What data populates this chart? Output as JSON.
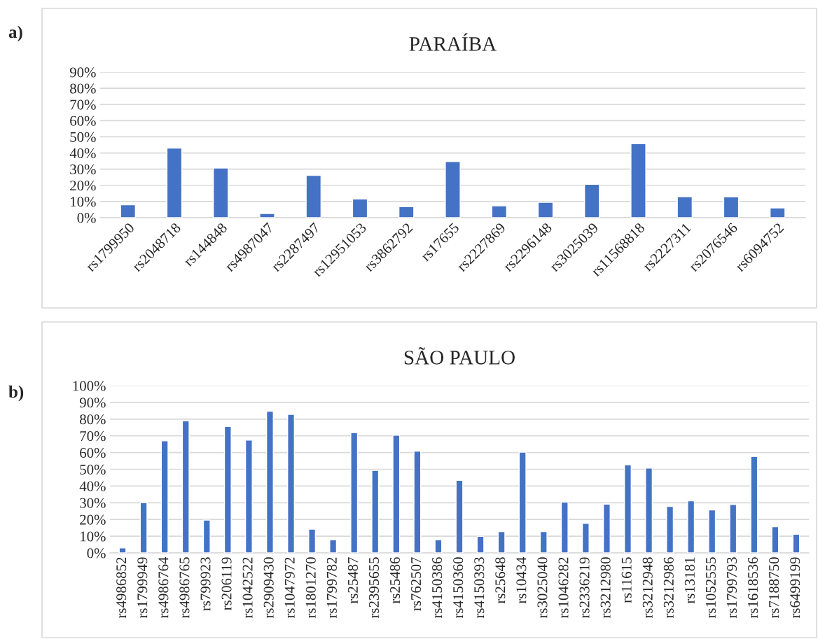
{
  "chart_data": [
    {
      "type": "bar",
      "title": "PARAÍBA",
      "annotations": [
        "a)"
      ],
      "color": "#4472c4",
      "grid": "y",
      "categories": [
        "rs1799950",
        "rs2048718",
        "rs144848",
        "rs4987047",
        "rs2287497",
        "rs12951053",
        "rs3862792",
        "rs17655",
        "rs2227869",
        "rs2296148",
        "rs3025039",
        "rs11568818",
        "rs2227311",
        "rs2076546",
        "rs6094752"
      ],
      "values": [
        8,
        43,
        30.7,
        2.6,
        26.2,
        11.5,
        6.8,
        34.7,
        7.3,
        9.5,
        20.6,
        45.7,
        13,
        12.9,
        6
      ],
      "ylim": [
        0,
        90
      ],
      "yticks": [
        {
          "value": 0,
          "label": "0%"
        },
        {
          "value": 10,
          "label": "10%"
        },
        {
          "value": 20,
          "label": "20%"
        },
        {
          "value": 30,
          "label": "30%"
        },
        {
          "value": 40,
          "label": "40%"
        },
        {
          "value": 50,
          "label": "50%"
        },
        {
          "value": 60,
          "label": "60%"
        },
        {
          "value": 70,
          "label": "70%"
        },
        {
          "value": 80,
          "label": "80%"
        },
        {
          "value": 90,
          "label": "90%"
        }
      ]
    },
    {
      "type": "bar",
      "title": "SÃO PAULO",
      "annotations": [
        "b)"
      ],
      "color": "#4472c4",
      "grid": "y",
      "categories": [
        "rs4986852",
        "rs1799949",
        "rs4986764",
        "rs4986765",
        "rs799923",
        "rs206119",
        "rs1042522",
        "rs2909430",
        "rs1047972",
        "rs1801270",
        "rs1799782",
        "rs25487",
        "rs2395655",
        "rs25486",
        "rs762507",
        "rs4150386",
        "rs4150360",
        "rs4150393",
        "rs25648",
        "rs10434",
        "rs3025040",
        "rs1046282",
        "rs2336219",
        "rs3212980",
        "rs11615",
        "rs3212948",
        "rs3212986",
        "rs13181",
        "rs1052555",
        "rs1799793",
        "rs1618536",
        "rs7188750",
        "rs6499199"
      ],
      "values": [
        3,
        30,
        67,
        79,
        19.6,
        75.6,
        67.4,
        84.7,
        82.8,
        14.2,
        7.8,
        71.9,
        49.3,
        70.4,
        60.9,
        7.8,
        43.4,
        9.9,
        12.7,
        60.2,
        12.7,
        30.4,
        17.7,
        29.2,
        52.7,
        50.7,
        27.8,
        31.1,
        25.7,
        28.9,
        57.6,
        15.7,
        11.2
      ],
      "ylim": [
        0,
        100
      ],
      "yticks": [
        {
          "value": 0,
          "label": "0%"
        },
        {
          "value": 10,
          "label": "10%"
        },
        {
          "value": 20,
          "label": "20%"
        },
        {
          "value": 30,
          "label": "30%"
        },
        {
          "value": 40,
          "label": "40%"
        },
        {
          "value": 50,
          "label": "50%"
        },
        {
          "value": 60,
          "label": "60%"
        },
        {
          "value": 70,
          "label": "70%"
        },
        {
          "value": 80,
          "label": "80%"
        },
        {
          "value": 90,
          "label": "90%"
        },
        {
          "value": 100,
          "label": "100%"
        }
      ]
    }
  ]
}
